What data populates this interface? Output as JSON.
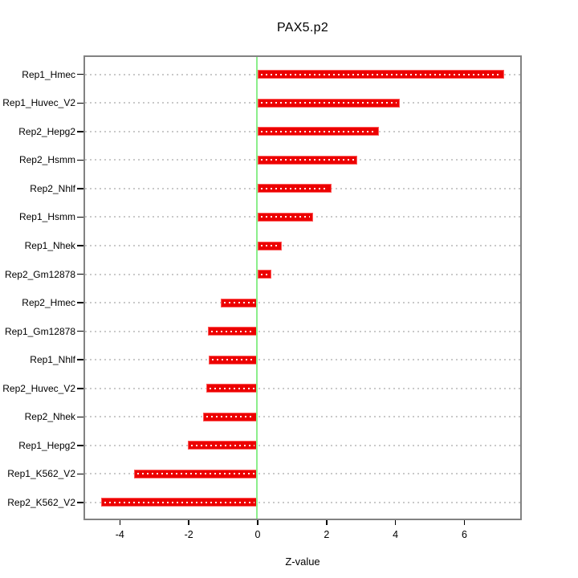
{
  "chart_data": {
    "type": "bar",
    "orientation": "horizontal",
    "title": "PAX5.p2",
    "xlabel": "Z-value",
    "ylabel": "",
    "categories": [
      "Rep1_Hmec",
      "Rep1_Huvec_V2",
      "Rep2_Hepg2",
      "Rep2_Hsmm",
      "Rep2_Nhlf",
      "Rep1_Hsmm",
      "Rep1_Nhek",
      "Rep2_Gm12878",
      "Rep2_Hmec",
      "Rep1_Gm12878",
      "Rep1_Nhlf",
      "Rep2_Huvec_V2",
      "Rep2_Nhek",
      "Rep1_Hepg2",
      "Rep1_K562_V2",
      "Rep2_K562_V2"
    ],
    "values": [
      7.16,
      4.13,
      3.52,
      2.89,
      2.15,
      1.6,
      0.71,
      0.4,
      -1.07,
      -1.44,
      -1.43,
      -1.48,
      -1.59,
      -2.03,
      -3.58,
      -4.54
    ],
    "xlim": [
      -5.01,
      7.62
    ],
    "xticks": [
      -4,
      -2,
      0,
      2,
      4,
      6
    ],
    "grid": true,
    "grid_style": "dotted",
    "zero_line": true,
    "legend": null
  },
  "colors": {
    "bar_fill": "#ec0000",
    "bar_edge": "#ff5a5a",
    "bar_inner_dots": "#ffffff",
    "zero_line": "#8cee8c",
    "grid": "#c9c9c9",
    "box_border": "#828282",
    "tick": "#000000",
    "text": "#000000",
    "background": "#ffffff"
  }
}
